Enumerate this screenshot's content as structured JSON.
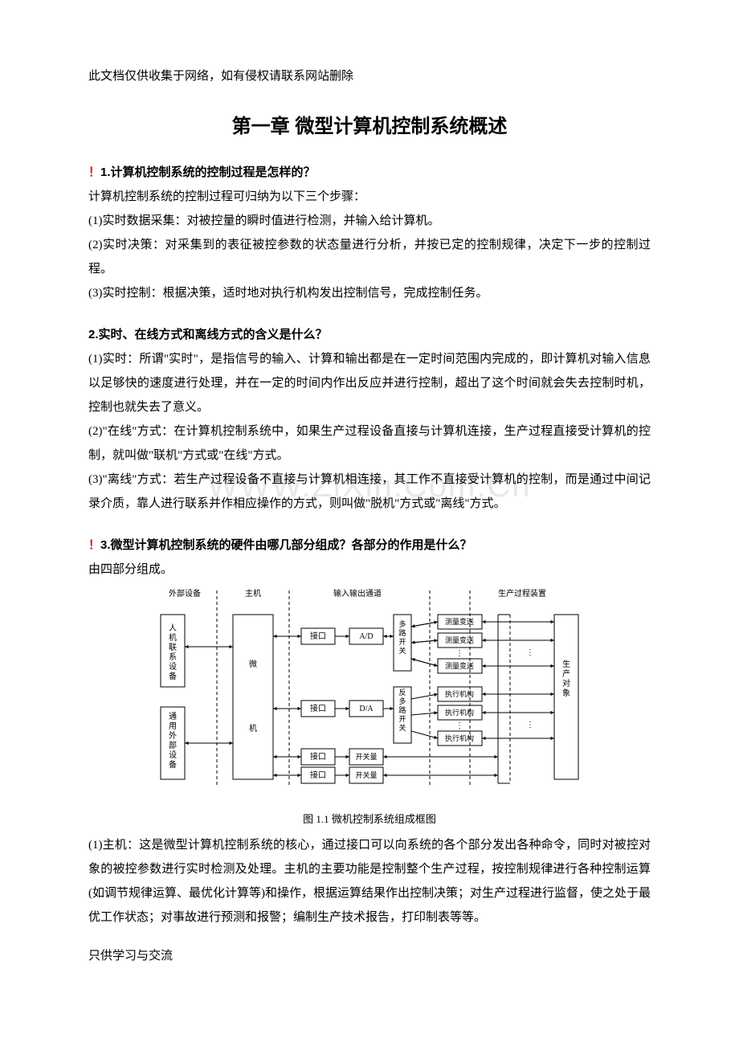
{
  "header_note": "此文档仅供收集于网络，如有侵权请联系网站删除",
  "watermark": "WWW.ZiXin.Com.Cn",
  "chapter_title": "第一章   微型计算机控制系统概述",
  "q1": {
    "bang": "！",
    "title": "1.计算机控制系统的控制过程是怎样的？",
    "intro": "计算机控制系统的控制过程可归纳为以下三个步骤：",
    "p1": "(1)实时数据采集：对被控量的瞬时值进行检测，并输入给计算机。",
    "p2": "(2)实时决策：对采集到的表征被控参数的状态量进行分析，并按已定的控制规律，决定下一步的控制过程。",
    "p3": "(3)实时控制：根据决策，适时地对执行机构发出控制信号，完成控制任务。"
  },
  "q2": {
    "title": "2.实时、在线方式和离线方式的含义是什么？",
    "p1": "(1)实时：所谓\"实时\"，是指信号的输入、计算和输出都是在一定时间范围内完成的，即计算机对输入信息以足够快的速度进行处理，并在一定的时间内作出反应并进行控制，超出了这个时间就会失去控制时机，控制也就失去了意义。",
    "p2": "(2)\"在线\"方式：在计算机控制系统中，如果生产过程设备直接与计算机连接，生产过程直接受计算机的控制，就叫做\"联机\"方式或\"在线\"方式。",
    "p3": "(3)\"离线\"方式：若生产过程设备不直接与计算机相连接，其工作不直接受计算机的控制，而是通过中间记录介质，靠人进行联系并作相应操作的方式，则叫做\"脱机\"方式或\"离线\"方式。"
  },
  "q3": {
    "bang": "！",
    "title": "3.微型计算机控制系统的硬件由哪几部分组成？各部分的作用是什么？",
    "intro": "由四部分组成。",
    "caption": "图 1.1 微机控制系统组成框图",
    "p1": "(1)主机：这是微型计算机控制系统的核心，通过接口可以向系统的各个部分发出各种命令，同时对被控对象的被控参数进行实时检测及处理。主机的主要功能是控制整个生产过程，按控制规律进行各种控制运算(如调节规律运算、最优化计算等)和操作，根据运算结果作出控制决策；对生产过程进行监督，使之处于最优工作状态；对事故进行预测和报警；编制生产技术报告，打印制表等等。"
  },
  "diagram": {
    "headers": {
      "ext_dev": "外部设备",
      "host": "主机",
      "io_channel": "输入输出通道",
      "process": "生产过程装置"
    },
    "boxes": {
      "hmi": "人机联系设备",
      "general": "通用外部设备",
      "micro": "微",
      "computer": "机",
      "interface": "接口",
      "ad": "A/D",
      "da": "D/A",
      "switch_in": "开关量",
      "switch_out": "开关量",
      "mux": "多路开关",
      "demux": "反多路开关",
      "sensor": "测量变送",
      "actuator": "执行机构",
      "plant": "生产对象",
      "dots": "⋮"
    },
    "colors": {
      "border": "#000000",
      "dashed": "#000000",
      "bg": "#ffffff",
      "text": "#000000"
    },
    "font_size": 10
  },
  "footer_note": "只供学习与交流"
}
